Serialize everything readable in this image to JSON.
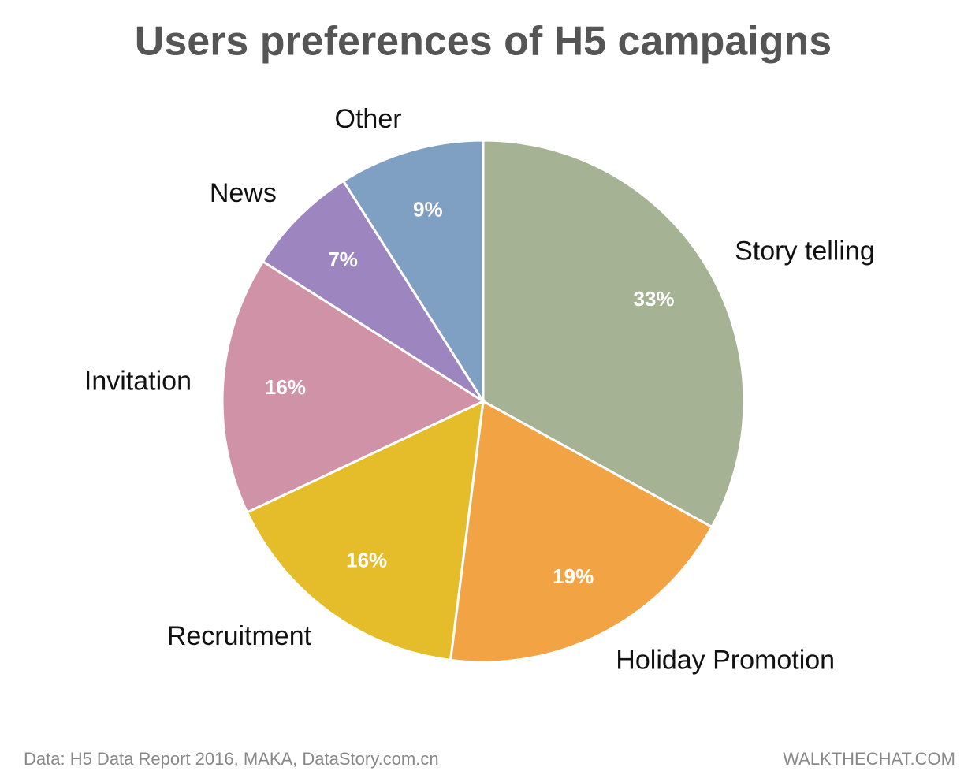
{
  "chart_data": {
    "type": "pie",
    "title": "Users preferences of H5 campaigns",
    "categories": [
      "Story telling",
      "Holiday Promotion",
      "Recruitment",
      "Invitation",
      "News",
      "Other"
    ],
    "values": [
      33,
      19,
      16,
      16,
      7,
      9
    ],
    "value_labels": [
      "33%",
      "19%",
      "16%",
      "16%",
      "7%",
      "9%"
    ],
    "colors": [
      "#a5b394",
      "#f2a444",
      "#e5bd2a",
      "#d092a6",
      "#9d86c0",
      "#7f9fc3"
    ],
    "source": "Data: H5 Data Report 2016, MAKA, DataStory.com.cn",
    "credit": "WALKTHECHAT.COM"
  }
}
